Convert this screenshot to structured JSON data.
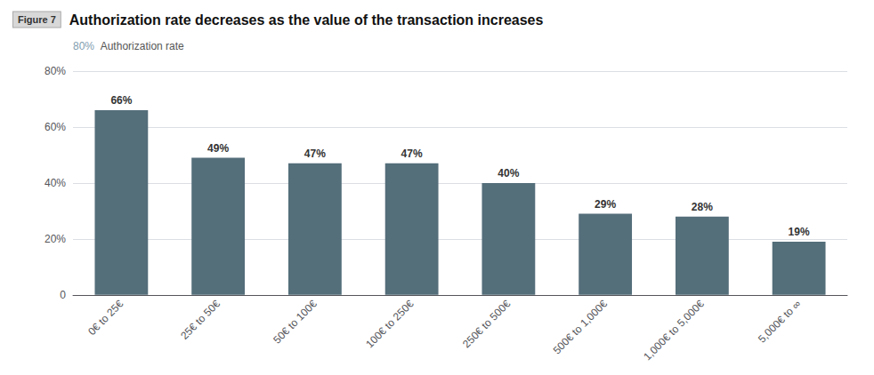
{
  "chart_data": {
    "type": "bar",
    "title": "Authorization rate decreases as the value of the transaction increases",
    "figure_label": "Figure 7",
    "ylabel_prefix": "80%",
    "ylabel": "Authorization rate",
    "categories": [
      "0€ to 25€",
      "25€ to 50€",
      "50€ to 100€",
      "100€ to 250€",
      "250€ to 500€",
      "500€ to 1,000€",
      "1,000€ to 5,000€",
      "5,000€ to ∞"
    ],
    "values": [
      66,
      49,
      47,
      47,
      40,
      29,
      28,
      19
    ],
    "value_labels": [
      "66%",
      "49%",
      "47%",
      "47%",
      "40%",
      "29%",
      "28%",
      "19%"
    ],
    "data_labels": true,
    "color": "#546e7a",
    "ylim": [
      0,
      80
    ],
    "yticks": [
      0,
      {
        "value": 20,
        "label": "20%"
      },
      {
        "value": 40,
        "label": "40%"
      },
      {
        "value": 60,
        "label": "60%"
      },
      {
        "value": 80,
        "label": "80%"
      }
    ],
    "grid": true
  }
}
